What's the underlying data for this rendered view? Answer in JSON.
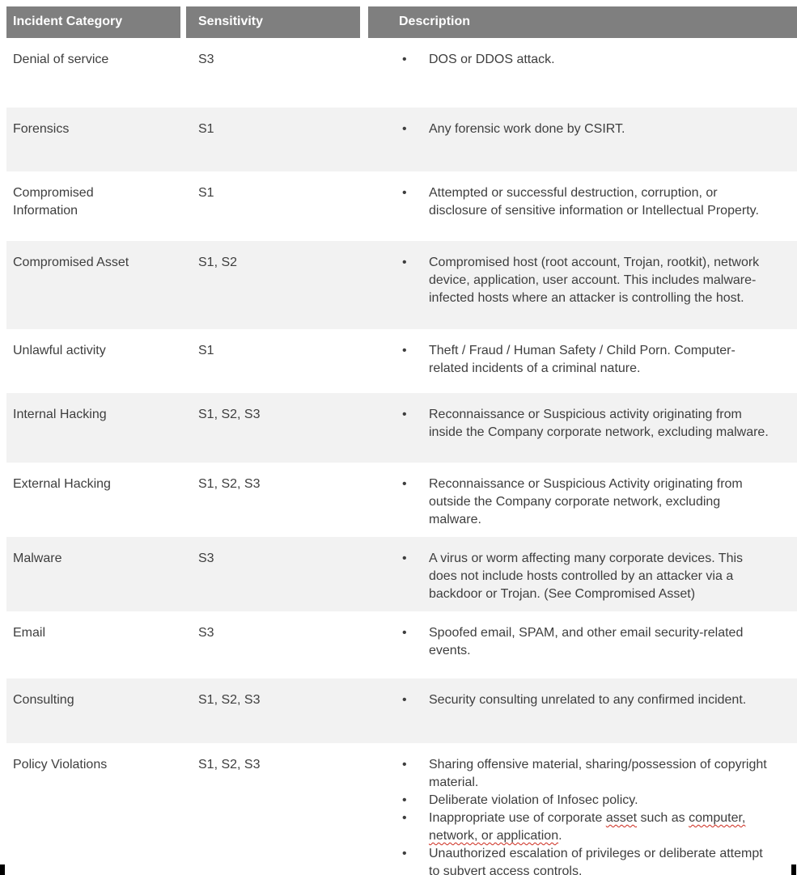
{
  "table": {
    "headers": [
      "Incident Category",
      "Sensitivity",
      "Description"
    ],
    "bullet_glyph": "•",
    "rows": [
      {
        "category": "Denial of service",
        "sensitivity": "S3",
        "bullets": [
          [
            {
              "text": "DOS or DDOS attack."
            }
          ]
        ]
      },
      {
        "category": "Forensics",
        "sensitivity": "S1",
        "bullets": [
          [
            {
              "text": "Any forensic work done by CSIRT."
            }
          ]
        ]
      },
      {
        "category": "Compromised Information",
        "sensitivity": "S1",
        "bullets": [
          [
            {
              "text": "Attempted or successful destruction, corruption, or disclosure of sensitive information or Intellectual Property."
            }
          ]
        ]
      },
      {
        "category": "Compromised Asset",
        "sensitivity": "S1, S2",
        "bullets": [
          [
            {
              "text": "Compromised host (root account, Trojan, rootkit), network device, application, user account.  This includes malware-infected hosts where an attacker is controlling the host."
            }
          ]
        ]
      },
      {
        "category": "Unlawful activity",
        "sensitivity": "S1",
        "bullets": [
          [
            {
              "text": "Theft / Fraud / Human Safety / Child Porn. Computer-related incidents of a criminal nature."
            }
          ]
        ]
      },
      {
        "category": "Internal Hacking",
        "sensitivity": "S1, S2, S3",
        "bullets": [
          [
            {
              "text": "Reconnaissance or Suspicious activity originating from inside the Company corporate network, excluding malware."
            }
          ]
        ]
      },
      {
        "category": "External Hacking",
        "sensitivity": "S1, S2, S3",
        "bullets": [
          [
            {
              "text": "Reconnaissance or Suspicious Activity originating from outside the Company corporate network, excluding malware."
            }
          ]
        ]
      },
      {
        "category": "Malware",
        "sensitivity": "S3",
        "bullets": [
          [
            {
              "text": "A virus or worm affecting many corporate devices. This does not include hosts controlled by an attacker via a backdoor or Trojan. (See Compromised Asset)"
            }
          ]
        ]
      },
      {
        "category": "Email",
        "sensitivity": "S3",
        "bullets": [
          [
            {
              "text": "Spoofed email, SPAM, and other email security-related events."
            }
          ]
        ]
      },
      {
        "category": "Consulting",
        "sensitivity": "S1, S2, S3",
        "bullets": [
          [
            {
              "text": "Security consulting unrelated to any confirmed incident."
            }
          ]
        ]
      },
      {
        "category": "Policy Violations",
        "sensitivity": "S1, S2, S3",
        "bullets": [
          [
            {
              "text": "Sharing offensive material, sharing/possession of copyright material."
            }
          ],
          [
            {
              "text": "Deliberate violation of Infosec policy."
            }
          ],
          [
            {
              "text": "Inappropriate use of corporate "
            },
            {
              "text": "asset",
              "misspelled": true
            },
            {
              "text": " such as "
            },
            {
              "text": "computer, network, or application",
              "misspelled": true
            },
            {
              "text": "."
            }
          ],
          [
            {
              "text": "Unauthorized escalation of privileges or deliberate attempt to subvert access controls."
            }
          ]
        ]
      }
    ]
  },
  "colors": {
    "header_bg": "#7f7f7f",
    "header_text": "#ffffff",
    "row_alt_bg": "#f2f2f2",
    "body_text": "#3e3e3e",
    "spellcheck_underline": "#cc2a1d",
    "edge_mark": "#000000"
  }
}
